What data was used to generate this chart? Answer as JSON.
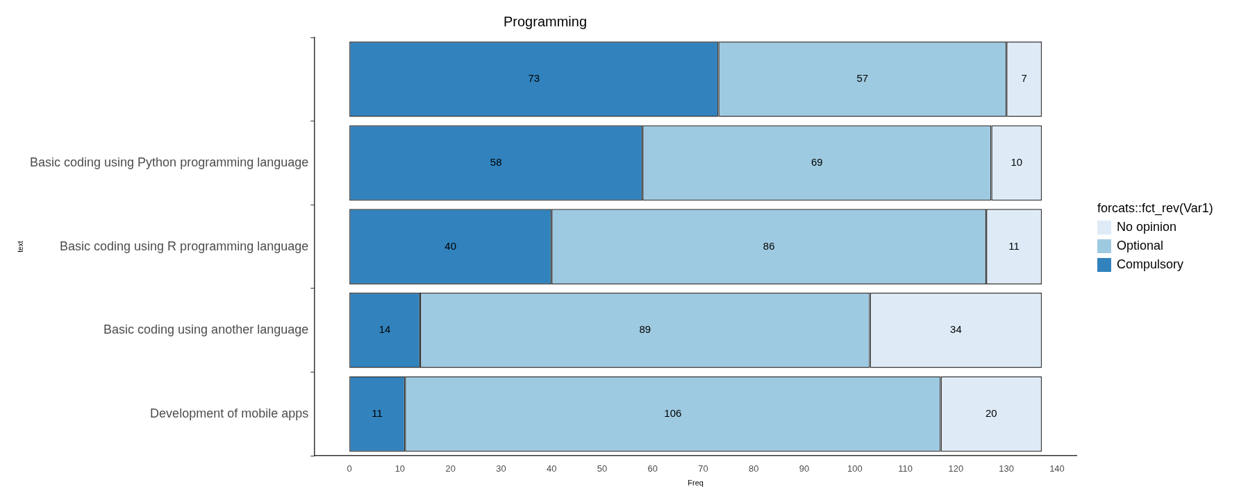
{
  "chart_data": {
    "type": "bar",
    "orientation": "horizontal",
    "stacked": true,
    "title": "Programming",
    "xlabel": "Freq",
    "ylabel": "text",
    "legend_title": "forcats::fct_rev(Var1)",
    "legend": "right",
    "grid": false,
    "data_labels": true,
    "categories": [
      null,
      "Basic coding using Python programming language",
      "Basic coding using R programming language",
      "Basic coding using another language",
      "Development of mobile apps"
    ],
    "series": [
      {
        "name": "Compulsory",
        "color": "#3182bd",
        "values": [
          73,
          58,
          40,
          14,
          11
        ]
      },
      {
        "name": "Optional",
        "color": "#9ecae1",
        "values": [
          57,
          69,
          86,
          89,
          106
        ]
      },
      {
        "name": "No opinion",
        "color": "#deebf7",
        "values": [
          7,
          10,
          11,
          34,
          20
        ]
      }
    ],
    "xlim": [
      -6.85,
      143.85
    ],
    "xticks": [
      0,
      10,
      20,
      30,
      40,
      50,
      60,
      70,
      80,
      90,
      100,
      110,
      120,
      130,
      140
    ]
  }
}
